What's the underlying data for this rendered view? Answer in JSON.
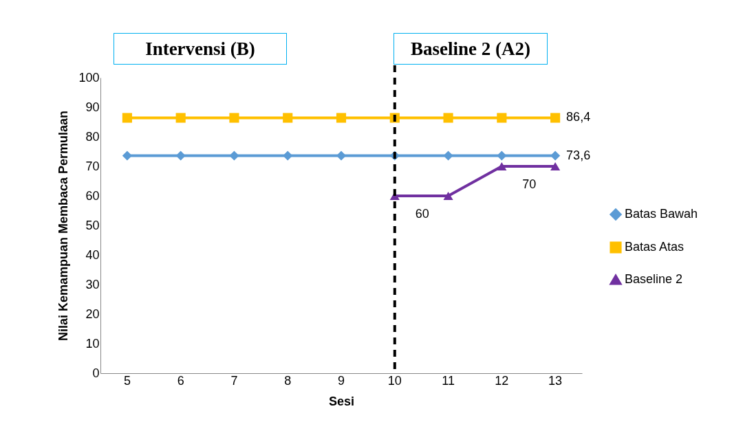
{
  "chart_data": {
    "type": "line",
    "xlabel": "Sesi",
    "ylabel": "Nilai Kemampuan Membaca Permulaan",
    "categories": [
      "5",
      "6",
      "7",
      "8",
      "9",
      "10",
      "11",
      "12",
      "13"
    ],
    "series": [
      {
        "name": "Batas Bawah",
        "color": "#5b9bd5",
        "marker": "diamond",
        "values": [
          73.6,
          73.6,
          73.6,
          73.6,
          73.6,
          73.6,
          73.6,
          73.6,
          73.6
        ],
        "value_labels": [
          null,
          null,
          null,
          null,
          null,
          null,
          null,
          null,
          "73,6"
        ]
      },
      {
        "name": "Batas Atas",
        "color": "#ffc000",
        "marker": "square",
        "values": [
          86.4,
          86.4,
          86.4,
          86.4,
          86.4,
          86.4,
          86.4,
          86.4,
          86.4
        ],
        "value_labels": [
          null,
          null,
          null,
          null,
          null,
          null,
          null,
          null,
          "86,4"
        ]
      },
      {
        "name": "Baseline 2",
        "color": "#7030a0",
        "marker": "triangle",
        "values": [
          null,
          null,
          null,
          null,
          null,
          60,
          60,
          70,
          70
        ],
        "value_labels": [
          null,
          null,
          null,
          null,
          null,
          "60",
          null,
          "70",
          null
        ]
      }
    ],
    "ylim": [
      0,
      100
    ],
    "yticks": [
      0,
      10,
      20,
      30,
      40,
      50,
      60,
      70,
      80,
      90,
      100
    ],
    "grid": false,
    "legend": "right",
    "ref_lines": [
      {
        "axis": "x",
        "value": "10",
        "color": "#000000",
        "line_style": "dashed"
      }
    ],
    "annotations": [
      "Intervensi (B)",
      "Baseline 2 (A2)"
    ]
  }
}
